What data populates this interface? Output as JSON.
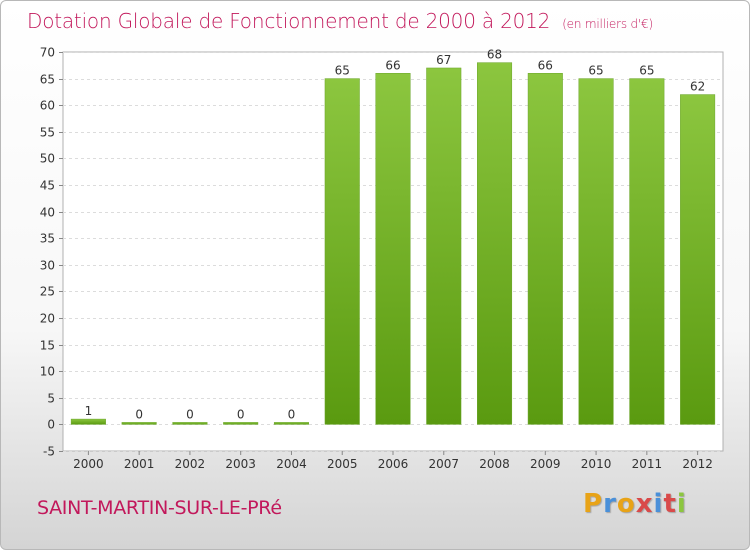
{
  "title": "Dotation Globale de Fonctionnement de 2000 à 2012",
  "unit_label": "(en milliers d'€)",
  "town": "SAINT-MARTIN-SUR-LE-PRé",
  "logo": {
    "letters": [
      "P",
      "r",
      "o",
      "x",
      "i",
      "t",
      "i"
    ],
    "colors": [
      "#e8a317",
      "#4a90d9",
      "#e8a317",
      "#d94a4a",
      "#4a90d9",
      "#d94a4a",
      "#8cc63f"
    ]
  },
  "colors": {
    "title": "#c2185b",
    "bar_top": "#8cc63f",
    "bar_bottom": "#5a9a10"
  },
  "chart_data": {
    "type": "bar",
    "categories": [
      "2000",
      "2001",
      "2002",
      "2003",
      "2004",
      "2005",
      "2006",
      "2007",
      "2008",
      "2009",
      "2010",
      "2011",
      "2012"
    ],
    "values": [
      1,
      0,
      0,
      0,
      0,
      65,
      66,
      67,
      68,
      66,
      65,
      65,
      62
    ],
    "data_labels": [
      "1",
      "0",
      "0",
      "0",
      "0",
      "65",
      "66",
      "67",
      "68",
      "66",
      "65",
      "65",
      "62"
    ],
    "yticks": [
      "-5",
      "0",
      "5",
      "10",
      "15",
      "20",
      "25",
      "30",
      "35",
      "40",
      "45",
      "50",
      "55",
      "60",
      "65",
      "70"
    ],
    "ylim": [
      -5,
      70
    ],
    "grid": true
  }
}
